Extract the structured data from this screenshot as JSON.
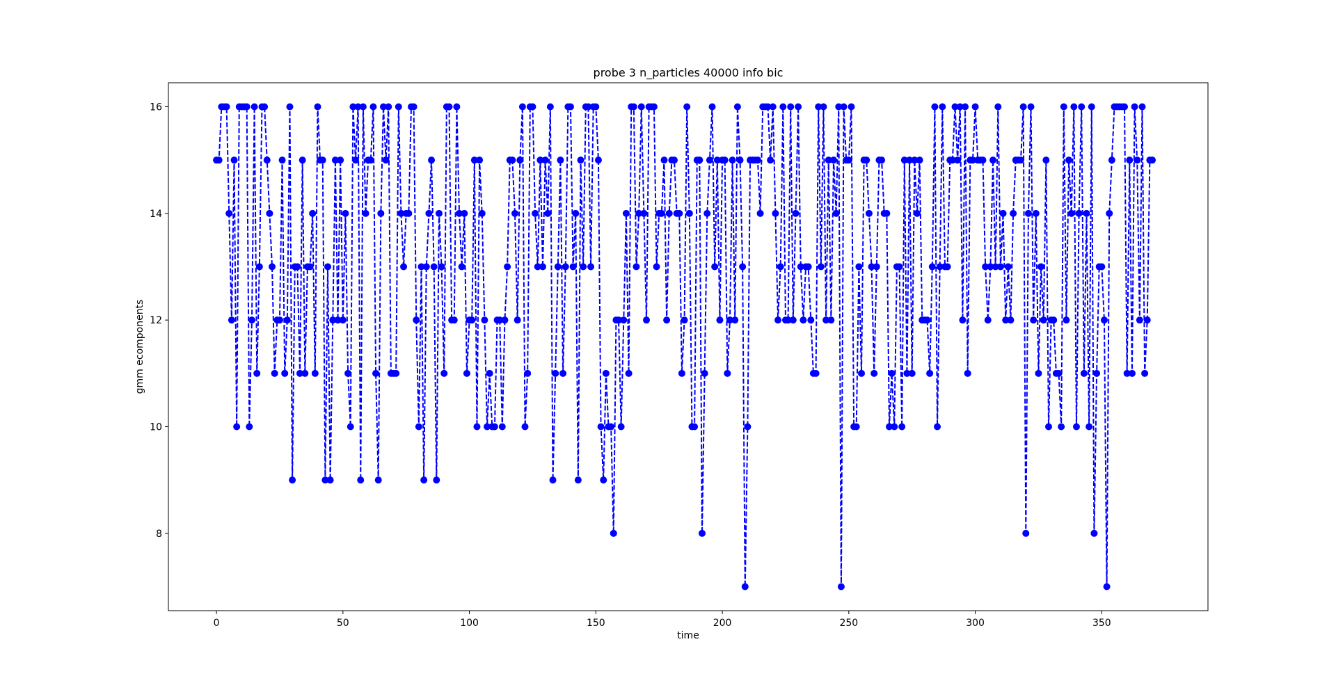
{
  "chart_data": {
    "type": "line",
    "title": "probe 3 n_particles 40000 info bic",
    "xlabel": "time",
    "ylabel": "gmm ecomponents",
    "xlim": [
      -19,
      392
    ],
    "ylim": [
      6.55,
      16.45
    ],
    "xticks": [
      0,
      50,
      100,
      150,
      200,
      250,
      300,
      350
    ],
    "yticks": [
      8,
      10,
      12,
      14,
      16
    ],
    "grid": false,
    "legend": "none",
    "series": [
      {
        "color": "#0000ff",
        "line_style": "dashed",
        "marker": "circle",
        "x_start": 0,
        "x_step": 1,
        "values": [
          15,
          15,
          16,
          16,
          16,
          14,
          12,
          15,
          10,
          16,
          16,
          16,
          16,
          10,
          12,
          16,
          11,
          13,
          16,
          16,
          15,
          14,
          13,
          11,
          12,
          12,
          15,
          11,
          12,
          16,
          9,
          13,
          13,
          11,
          15,
          11,
          13,
          13,
          14,
          11,
          16,
          15,
          15,
          9,
          13,
          9,
          12,
          15,
          12,
          15,
          12,
          14,
          11,
          10,
          16,
          15,
          16,
          9,
          16,
          14,
          15,
          15,
          16,
          11,
          9,
          14,
          16,
          15,
          16,
          11,
          11,
          11,
          16,
          14,
          13,
          14,
          14,
          16,
          16,
          12,
          10,
          13,
          9,
          13,
          14,
          15,
          13,
          9,
          14,
          13,
          11,
          16,
          16,
          12,
          12,
          16,
          14,
          13,
          14,
          11,
          12,
          12,
          15,
          10,
          15,
          14,
          12,
          10,
          11,
          10,
          10,
          12,
          12,
          10,
          12,
          13,
          15,
          15,
          14,
          12,
          15,
          16,
          10,
          11,
          16,
          16,
          14,
          13,
          15,
          13,
          15,
          14,
          16,
          9,
          11,
          13,
          15,
          11,
          13,
          16,
          16,
          13,
          14,
          9,
          15,
          13,
          16,
          16,
          13,
          16,
          16,
          15,
          10,
          9,
          11,
          10,
          10,
          8,
          12,
          12,
          10,
          12,
          14,
          11,
          16,
          16,
          13,
          14,
          16,
          14,
          12,
          16,
          16,
          16,
          13,
          14,
          14,
          15,
          12,
          14,
          15,
          15,
          14,
          14,
          11,
          12,
          16,
          14,
          10,
          10,
          15,
          15,
          8,
          11,
          14,
          15,
          16,
          13,
          15,
          12,
          15,
          15,
          11,
          12,
          15,
          12,
          16,
          15,
          13,
          7,
          10,
          15,
          15,
          15,
          15,
          14,
          16,
          16,
          16,
          15,
          16,
          14,
          12,
          13,
          16,
          12,
          12,
          16,
          12,
          14,
          16,
          13,
          12,
          13,
          13,
          12,
          11,
          11,
          16,
          13,
          16,
          12,
          15,
          12,
          15,
          14,
          16,
          7,
          16,
          15,
          15,
          16,
          10,
          10,
          13,
          11,
          15,
          15,
          14,
          13,
          11,
          13,
          15,
          15,
          14,
          14,
          10,
          11,
          10,
          13,
          13,
          10,
          15,
          11,
          15,
          11,
          15,
          14,
          15,
          12,
          12,
          12,
          11,
          13,
          16,
          10,
          13,
          16,
          13,
          13,
          15,
          15,
          16,
          15,
          16,
          12,
          16,
          11,
          15,
          15,
          16,
          15,
          15,
          15,
          13,
          12,
          13,
          15,
          13,
          16,
          13,
          14,
          12,
          13,
          12,
          14,
          15,
          15,
          15,
          16,
          8,
          14,
          16,
          12,
          14,
          11,
          13,
          12,
          15,
          10,
          12,
          12,
          11,
          11,
          10,
          16,
          12,
          15,
          14,
          16,
          10,
          14,
          16,
          11,
          14,
          10,
          16,
          8,
          11,
          13,
          13,
          12,
          7,
          14,
          15,
          16,
          16,
          16,
          16,
          16,
          11,
          15,
          11,
          16,
          15,
          12,
          16,
          11,
          12,
          15,
          15
        ]
      }
    ]
  }
}
